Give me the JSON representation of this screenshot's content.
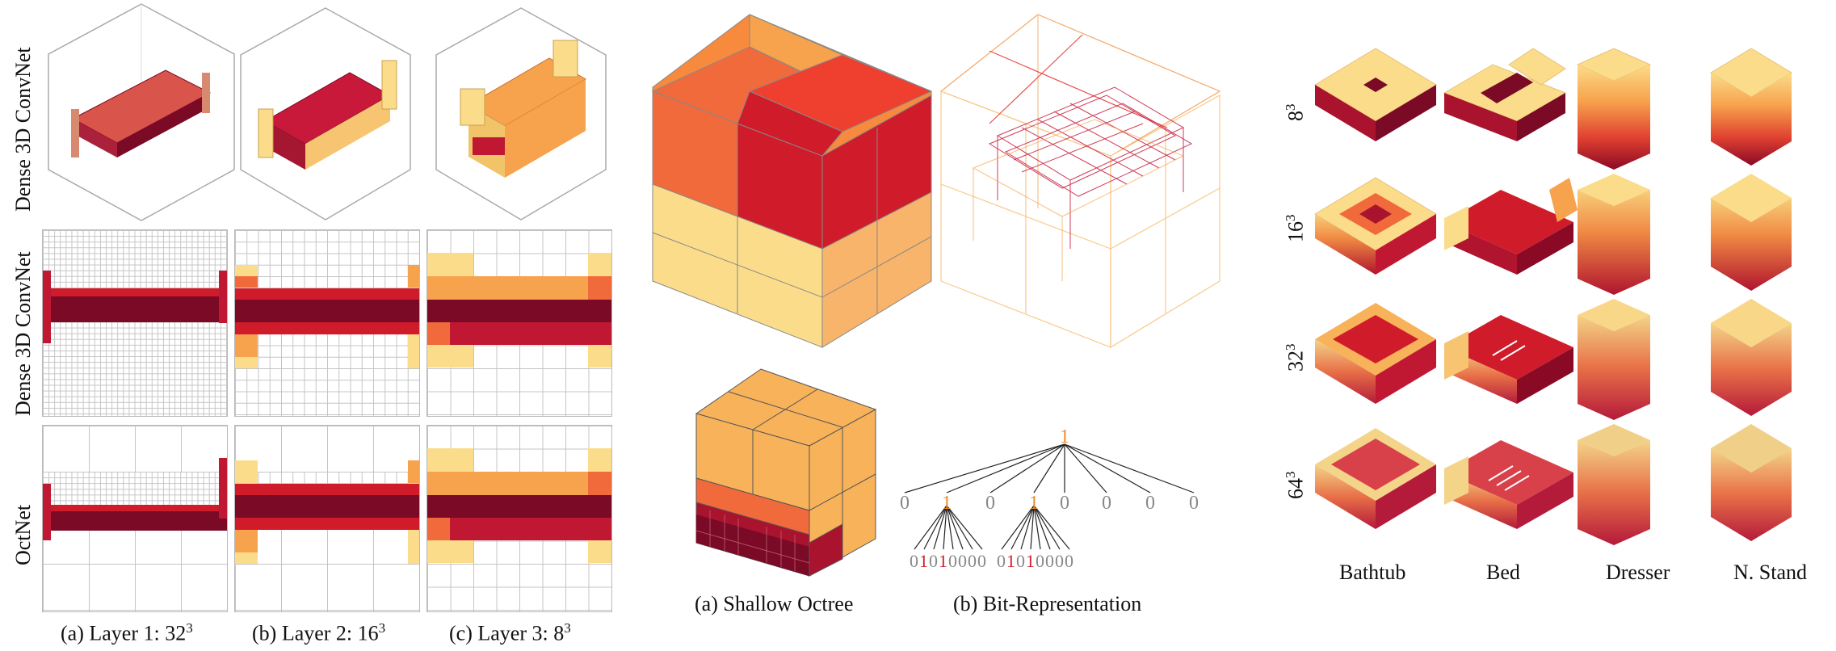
{
  "left_panel": {
    "row_labels": {
      "row1": "Dense 3D ConvNet",
      "row2": "Dense 3D ConvNet",
      "row3": "OctNet"
    },
    "captions": {
      "a_main": "(a) Layer 1: 32",
      "a_sup": "3",
      "b_main": "(b) Layer 2: 16",
      "b_sup": "3",
      "c_main": "(c) Layer 3: 8",
      "c_sup": "3"
    }
  },
  "middle_panel": {
    "captions": {
      "a": "(a) Shallow Octree",
      "b": "(b) Bit-Representation"
    },
    "tree": {
      "root": "1",
      "level1": [
        "0",
        "1",
        "0",
        "1",
        "0",
        "0",
        "0",
        "0"
      ],
      "sub1_bits": [
        "0",
        "1",
        "0",
        "1",
        "0",
        "0",
        "0",
        "0"
      ],
      "sub2_bits": [
        "0",
        "1",
        "0",
        "1",
        "0",
        "0",
        "0",
        "0"
      ]
    }
  },
  "right_panel": {
    "row_labels": [
      {
        "base": "8",
        "sup": "3"
      },
      {
        "base": "16",
        "sup": "3"
      },
      {
        "base": "32",
        "sup": "3"
      },
      {
        "base": "64",
        "sup": "3"
      }
    ],
    "column_labels": [
      "Bathtub",
      "Bed",
      "Dresser",
      "N. Stand"
    ]
  },
  "colors": {
    "light": "#fbdc8a",
    "mid": "#f7a24c",
    "orange": "#f06a3c",
    "red": "#d01c2a",
    "dark": "#7a0a26",
    "grid": "#b9b9b9"
  }
}
